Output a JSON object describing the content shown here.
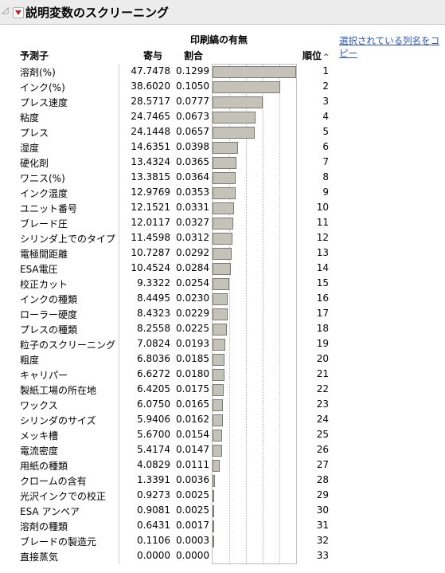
{
  "outline": {
    "title": "説明変数のスクリーニング"
  },
  "column_group_title": "印刷縞の有無",
  "copy_link_label": "選択されている列名をコピー",
  "headers": {
    "predictor": "予測子",
    "contribution": "寄与",
    "portion": "割合",
    "rank": "順位",
    "rank_sort_icon": "^"
  },
  "rows": [
    {
      "name": "溶剤(%)",
      "contribution": "47.7478",
      "portion": "0.1299",
      "rank": "1"
    },
    {
      "name": "インク(%)",
      "contribution": "38.6020",
      "portion": "0.1050",
      "rank": "2"
    },
    {
      "name": "プレス速度",
      "contribution": "28.5717",
      "portion": "0.0777",
      "rank": "3"
    },
    {
      "name": "粘度",
      "contribution": "24.7465",
      "portion": "0.0673",
      "rank": "4"
    },
    {
      "name": "プレス",
      "contribution": "24.1448",
      "portion": "0.0657",
      "rank": "5"
    },
    {
      "name": "湿度",
      "contribution": "14.6351",
      "portion": "0.0398",
      "rank": "6"
    },
    {
      "name": "硬化剤",
      "contribution": "13.4324",
      "portion": "0.0365",
      "rank": "7"
    },
    {
      "name": "ワニス(%)",
      "contribution": "13.3815",
      "portion": "0.0364",
      "rank": "8"
    },
    {
      "name": "インク温度",
      "contribution": "12.9769",
      "portion": "0.0353",
      "rank": "9"
    },
    {
      "name": "ユニット番号",
      "contribution": "12.1521",
      "portion": "0.0331",
      "rank": "10"
    },
    {
      "name": "ブレード圧",
      "contribution": "12.0117",
      "portion": "0.0327",
      "rank": "11"
    },
    {
      "name": "シリンダ上でのタイプ",
      "contribution": "11.4598",
      "portion": "0.0312",
      "rank": "12"
    },
    {
      "name": "電極間距離",
      "contribution": "10.7287",
      "portion": "0.0292",
      "rank": "13"
    },
    {
      "name": "ESA電圧",
      "contribution": "10.4524",
      "portion": "0.0284",
      "rank": "14"
    },
    {
      "name": "校正カット",
      "contribution": "9.3322",
      "portion": "0.0254",
      "rank": "15"
    },
    {
      "name": "インクの種類",
      "contribution": "8.4495",
      "portion": "0.0230",
      "rank": "16"
    },
    {
      "name": "ローラー硬度",
      "contribution": "8.4323",
      "portion": "0.0229",
      "rank": "17"
    },
    {
      "name": "プレスの種類",
      "contribution": "8.2558",
      "portion": "0.0225",
      "rank": "18"
    },
    {
      "name": "粒子のスクリーニング",
      "contribution": "7.0824",
      "portion": "0.0193",
      "rank": "19"
    },
    {
      "name": "粗度",
      "contribution": "6.8036",
      "portion": "0.0185",
      "rank": "20"
    },
    {
      "name": "キャリパー",
      "contribution": "6.6272",
      "portion": "0.0180",
      "rank": "21"
    },
    {
      "name": "製紙工場の所在地",
      "contribution": "6.4205",
      "portion": "0.0175",
      "rank": "22"
    },
    {
      "name": "ワックス",
      "contribution": "6.0750",
      "portion": "0.0165",
      "rank": "23"
    },
    {
      "name": "シリンダのサイズ",
      "contribution": "5.9406",
      "portion": "0.0162",
      "rank": "24"
    },
    {
      "name": "メッキ槽",
      "contribution": "5.6700",
      "portion": "0.0154",
      "rank": "25"
    },
    {
      "name": "電流密度",
      "contribution": "5.4174",
      "portion": "0.0147",
      "rank": "26"
    },
    {
      "name": "用紙の種類",
      "contribution": "4.0829",
      "portion": "0.0111",
      "rank": "27"
    },
    {
      "name": "クロームの含有",
      "contribution": "1.3391",
      "portion": "0.0036",
      "rank": "28"
    },
    {
      "name": "光沢インクでの校正",
      "contribution": "0.9273",
      "portion": "0.0025",
      "rank": "29"
    },
    {
      "name": "ESA アンペア",
      "contribution": "0.9081",
      "portion": "0.0025",
      "rank": "30"
    },
    {
      "name": "溶剤の種類",
      "contribution": "0.6431",
      "portion": "0.0017",
      "rank": "31"
    },
    {
      "name": "ブレードの製造元",
      "contribution": "0.1106",
      "portion": "0.0003",
      "rank": "32"
    },
    {
      "name": "直接蒸気",
      "contribution": "0.0000",
      "portion": "0.0000",
      "rank": "33"
    }
  ],
  "colors": {
    "bar_fill": "#c5c2ba",
    "bar_border": "#7c7a74",
    "link": "#2a53b8",
    "disclosure_icon": "#d42020",
    "header_bg": "#ececec"
  }
}
